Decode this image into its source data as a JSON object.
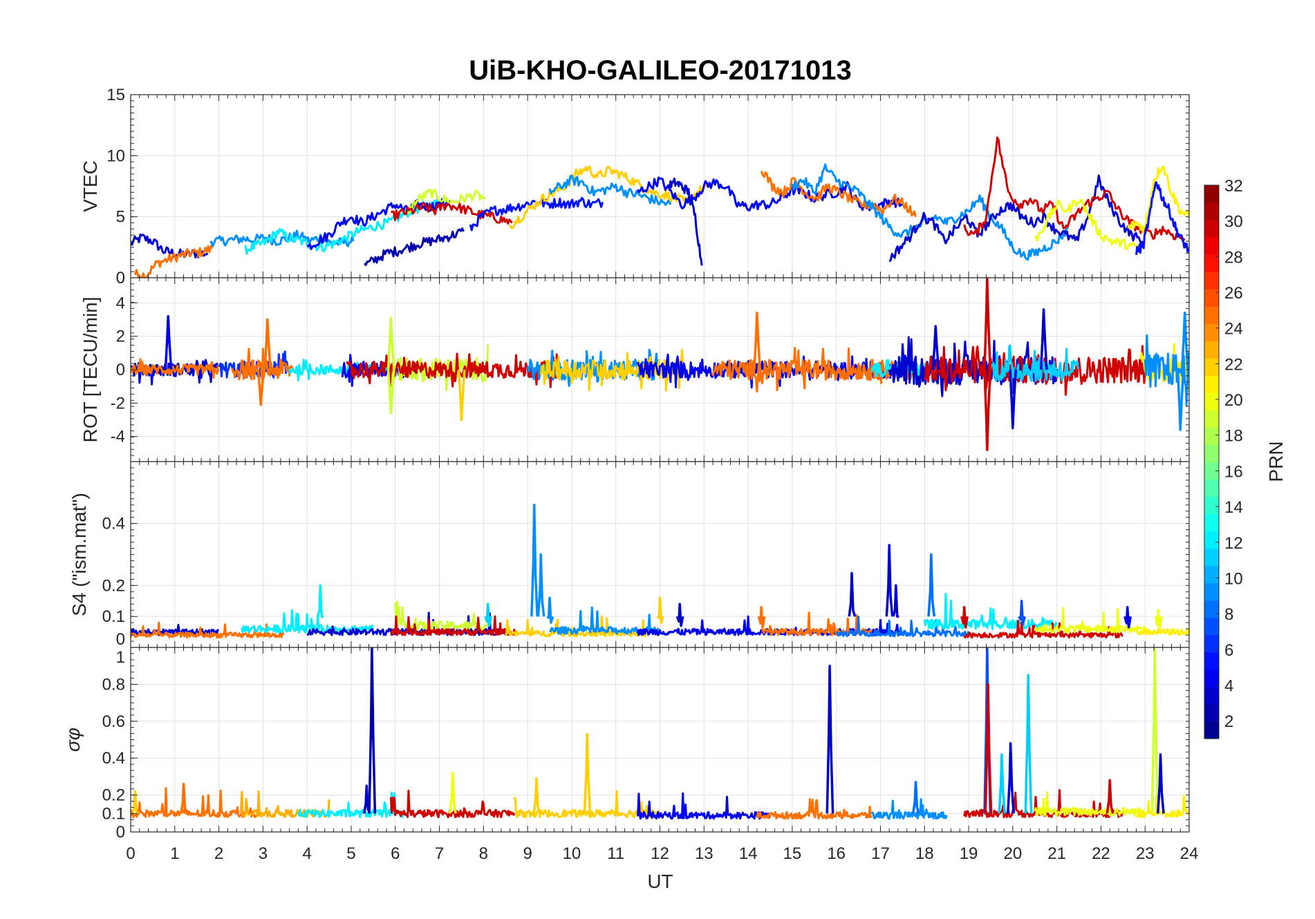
{
  "chart_data": {
    "type": "line",
    "title": "UiB-KHO-GALILEO-20171013",
    "xlabel": "UT",
    "xlim": [
      0,
      24
    ],
    "xticks": [
      "0",
      "1",
      "2",
      "3",
      "4",
      "5",
      "6",
      "7",
      "8",
      "9",
      "10",
      "11",
      "12",
      "13",
      "14",
      "15",
      "16",
      "17",
      "18",
      "19",
      "20",
      "21",
      "22",
      "23",
      "24"
    ],
    "grid": true,
    "colorbar": {
      "label": "PRN",
      "colormap": "jet",
      "range": [
        1,
        32
      ],
      "ticks": [
        "2",
        "4",
        "6",
        "8",
        "10",
        "12",
        "14",
        "16",
        "18",
        "20",
        "22",
        "24",
        "26",
        "28",
        "30",
        "32"
      ],
      "placement": "right"
    },
    "panels": [
      {
        "ylabel": "VTEC",
        "ylim": [
          0,
          15
        ],
        "yticks": [
          "0",
          "5",
          "10",
          "15"
        ],
        "ytick_values": [
          0,
          5,
          10,
          15
        ],
        "series": [
          {
            "prn": 3,
            "t0": 0,
            "dt": 0.25,
            "v": [
              2.8,
              3.3,
              3.0,
              2.2,
              2.0,
              1.9,
              2.0,
              2.0
            ]
          },
          {
            "prn": 25,
            "t0": 0.1,
            "dt": 0.25,
            "v": [
              0.3,
              0.2,
              1.2,
              1.5,
              1.8,
              2.0,
              2.1,
              2.4
            ]
          },
          {
            "prn": 9,
            "t0": 1.8,
            "dt": 0.25,
            "v": [
              3.0,
              3.0,
              3.1,
              3.2,
              3.1,
              3.3,
              3.0,
              3.2,
              3.5,
              3.0,
              3.3,
              2.8,
              2.9,
              3.0
            ]
          },
          {
            "prn": 12,
            "t0": 2.6,
            "dt": 0.25,
            "v": [
              2.3,
              2.6,
              3.0,
              3.8,
              3.2,
              3.0,
              2.7,
              2.5,
              2.8,
              3.2,
              3.7,
              4.0,
              4.3,
              4.5,
              5.0,
              5.5,
              5.8,
              6.0,
              6.3
            ]
          },
          {
            "prn": 4,
            "t0": 4.0,
            "dt": 0.25,
            "v": [
              2.5,
              3.0,
              3.5,
              4.5,
              5.0,
              4.5,
              5.0,
              5.5,
              6.0,
              5.5,
              6.0,
              5.8,
              6.0,
              6.3
            ]
          },
          {
            "prn": 2,
            "t0": 5.3,
            "dt": 0.25,
            "v": [
              1.0,
              1.5,
              2.0,
              2.2,
              2.5,
              2.8,
              3.0,
              3.2,
              3.5,
              3.8
            ]
          },
          {
            "prn": 19,
            "t0": 6.3,
            "dt": 0.25,
            "v": [
              5.5,
              6.5,
              7.0,
              6.5,
              6.2,
              6.5,
              6.8,
              6.5
            ]
          },
          {
            "prn": 30,
            "t0": 5.9,
            "dt": 0.25,
            "v": [
              5.0,
              5.3,
              5.5,
              5.8,
              5.5,
              6.0,
              5.8,
              5.5,
              5.2,
              5.0,
              4.8,
              4.5
            ]
          },
          {
            "prn": 5,
            "t0": 7.7,
            "dt": 0.25,
            "v": [
              4.0,
              5.0,
              5.5,
              5.6,
              5.8,
              6.0,
              6.3,
              6.0,
              6.2,
              6.0,
              6.3,
              6.0,
              6.2
            ]
          },
          {
            "prn": 22,
            "t0": 8.6,
            "dt": 0.25,
            "v": [
              4.3,
              5.0,
              5.8,
              6.5,
              7.0,
              7.5,
              8.5,
              9.0,
              8.3,
              8.8,
              8.5,
              8.0,
              7.5,
              7.0,
              6.8,
              6.5,
              6.2,
              7.0,
              7.5
            ]
          },
          {
            "prn": 9,
            "t0": 9.5,
            "dt": 0.25,
            "v": [
              7.0,
              7.5,
              8.0,
              7.8,
              7.0,
              7.2,
              7.5,
              7.0,
              6.8,
              6.5,
              6.2,
              6.0
            ]
          },
          {
            "prn": 4,
            "t0": 11.5,
            "dt": 0.25,
            "v": [
              7.0,
              7.5,
              8.0,
              7.0,
              6.0,
              6.5,
              7.5,
              7.8,
              7.5,
              6.0,
              5.8,
              6.0,
              6.0,
              6.5,
              7.2,
              7.0,
              6.5,
              6.8,
              7.0,
              7.5,
              6.0,
              5.8,
              6.0,
              6.3,
              6.0
            ]
          },
          {
            "prn": 3,
            "t0": 12.2,
            "dt": 0.15,
            "v": [
              7.5,
              7.8,
              7.5,
              7.0,
              5.0,
              1.0
            ]
          },
          {
            "prn": 25,
            "t0": 14.3,
            "dt": 0.25,
            "v": [
              9.0,
              7.5,
              7.0,
              8.0,
              7.0,
              6.5,
              7.5,
              7.0,
              6.5,
              6.0,
              6.0,
              5.5,
              6.5,
              6.0,
              5.0
            ]
          },
          {
            "prn": 9,
            "t0": 15.0,
            "dt": 0.25,
            "v": [
              7.5,
              8.0,
              7.0,
              9.0,
              8.0,
              7.5,
              7.0,
              6.0,
              5.0,
              4.0,
              3.5,
              4.0,
              4.5,
              5.0,
              4.5,
              5.0,
              5.5,
              6.5,
              5.0,
              4.0,
              2.5,
              1.8,
              2.0,
              2.5,
              3.0,
              4.0
            ]
          },
          {
            "prn": 3,
            "t0": 17.2,
            "dt": 0.25,
            "v": [
              1.5,
              2.5,
              3.5,
              5.0,
              4.5,
              3.0,
              4.0,
              5.0,
              3.5,
              4.5,
              5.5,
              6.0,
              5.0,
              4.5,
              5.0,
              4.0,
              3.5,
              3.0,
              5.0,
              8.0,
              6.0,
              4.5,
              3.5,
              3.0
            ]
          },
          {
            "prn": 30,
            "t0": 18.9,
            "dt": 0.25,
            "v": [
              4.0,
              3.5,
              5.0,
              11.5,
              7.0,
              6.0,
              6.5,
              5.5,
              6.0,
              4.0,
              5.0,
              6.0,
              6.5,
              7.0,
              5.5,
              4.5,
              4.0,
              3.5,
              4.0,
              3.5,
              3.2
            ]
          },
          {
            "prn": 20,
            "t0": 20.5,
            "dt": 0.25,
            "v": [
              3.0,
              4.5,
              6.0,
              5.5,
              6.5,
              5.0,
              3.5,
              3.0,
              2.8,
              2.5,
              2.5
            ]
          },
          {
            "prn": 21,
            "t0": 22.6,
            "dt": 0.2,
            "v": [
              4.0,
              4.5,
              4.0,
              8.0,
              9.3,
              7.0,
              5.5,
              5.0,
              4.5
            ]
          },
          {
            "prn": 5,
            "t0": 22.8,
            "dt": 0.15,
            "v": [
              2.2,
              2.5,
              5.0,
              8.0,
              6.5,
              5.5,
              4.0,
              3.0,
              2.2
            ]
          }
        ]
      },
      {
        "ylabel": "ROT [TECU/min]",
        "ylim": [
          -5.5,
          5.5
        ],
        "yticks": [
          "-4",
          "-2",
          "0",
          "2",
          "4"
        ],
        "ytick_values": [
          -4,
          -2,
          0,
          2,
          4
        ],
        "noise_segments": [
          {
            "prn": 3,
            "t0": 0,
            "t1": 2,
            "amp": 0.4
          },
          {
            "prn": 25,
            "t0": 0,
            "t1": 2,
            "amp": 0.3
          },
          {
            "prn": 6,
            "t0": 2,
            "t1": 3.6,
            "amp": 0.5
          },
          {
            "prn": 25,
            "t0": 2.3,
            "t1": 3.7,
            "amp": 0.6
          },
          {
            "prn": 12,
            "t0": 3.6,
            "t1": 6,
            "amp": 0.3
          },
          {
            "prn": 4,
            "t0": 4.8,
            "t1": 6.5,
            "amp": 0.5
          },
          {
            "prn": 19,
            "t0": 5.8,
            "t1": 8.1,
            "amp": 0.7
          },
          {
            "prn": 30,
            "t0": 4.9,
            "t1": 9.7,
            "amp": 0.5
          },
          {
            "prn": 9,
            "t0": 9,
            "t1": 12,
            "amp": 0.6
          },
          {
            "prn": 22,
            "t0": 9.3,
            "t1": 12.6,
            "amp": 0.6
          },
          {
            "prn": 4,
            "t0": 11.5,
            "t1": 17.7,
            "amp": 0.5
          },
          {
            "prn": 25,
            "t0": 13.2,
            "t1": 17.8,
            "amp": 0.6
          },
          {
            "prn": 12,
            "t0": 16.8,
            "t1": 18.8,
            "amp": 0.4
          },
          {
            "prn": 3,
            "t0": 17.2,
            "t1": 21,
            "amp": 0.9
          },
          {
            "prn": 30,
            "t0": 18,
            "t1": 23,
            "amp": 0.8
          },
          {
            "prn": 11,
            "t0": 19.5,
            "t1": 21.5,
            "amp": 0.7
          },
          {
            "prn": 21,
            "t0": 22.9,
            "t1": 24,
            "amp": 0.8
          },
          {
            "prn": 9,
            "t0": 23,
            "t1": 24,
            "amp": 1.0
          }
        ],
        "spikes": [
          {
            "t": 0.85,
            "v": 3.2,
            "prn": 4
          },
          {
            "t": 2.95,
            "v": -2.1,
            "prn": 25
          },
          {
            "t": 3.1,
            "v": 3.0,
            "prn": 25
          },
          {
            "t": 5.9,
            "v": 3.1,
            "prn": 19
          },
          {
            "t": 5.9,
            "v": -2.6,
            "prn": 19
          },
          {
            "t": 7.5,
            "v": -3.0,
            "prn": 22
          },
          {
            "t": 14.2,
            "v": 3.4,
            "prn": 25
          },
          {
            "t": 18.25,
            "v": 2.6,
            "prn": 3
          },
          {
            "t": 19.42,
            "v": 5.5,
            "prn": 30
          },
          {
            "t": 19.42,
            "v": -4.8,
            "prn": 30
          },
          {
            "t": 20.7,
            "v": 3.6,
            "prn": 3
          },
          {
            "t": 20,
            "v": -3.5,
            "prn": 3
          },
          {
            "t": 23.9,
            "v": 3.4,
            "prn": 9
          },
          {
            "t": 23.8,
            "v": -3.6,
            "prn": 9
          }
        ]
      },
      {
        "ylabel": "S4 (\"ism.mat\")",
        "ylim": [
          0,
          0.6
        ],
        "yticks": [
          "0",
          "0.1",
          "0.2",
          "0.4"
        ],
        "ytick_values": [
          0,
          0.1,
          0.2,
          0.4
        ],
        "noise_segments": [
          {
            "prn": 3,
            "t0": 0,
            "t1": 2,
            "base": 0.05
          },
          {
            "prn": 25,
            "t0": 0,
            "t1": 3.5,
            "base": 0.04
          },
          {
            "prn": 12,
            "t0": 2.5,
            "t1": 5.5,
            "base": 0.06
          },
          {
            "prn": 3,
            "t0": 4,
            "t1": 8.6,
            "base": 0.05
          },
          {
            "prn": 19,
            "t0": 6,
            "t1": 8.1,
            "base": 0.07
          },
          {
            "prn": 30,
            "t0": 5.9,
            "t1": 8.7,
            "base": 0.05
          },
          {
            "prn": 22,
            "t0": 8.5,
            "t1": 12,
            "base": 0.045
          },
          {
            "prn": 9,
            "t0": 9.5,
            "t1": 12,
            "base": 0.055
          },
          {
            "prn": 4,
            "t0": 11.5,
            "t1": 17.5,
            "base": 0.05
          },
          {
            "prn": 25,
            "t0": 14.3,
            "t1": 16.8,
            "base": 0.05
          },
          {
            "prn": 8,
            "t0": 16,
            "t1": 19,
            "base": 0.045
          },
          {
            "prn": 12,
            "t0": 18,
            "t1": 21,
            "base": 0.075
          },
          {
            "prn": 30,
            "t0": 18.9,
            "t1": 22.5,
            "base": 0.04
          },
          {
            "prn": 20,
            "t0": 20.5,
            "t1": 23,
            "base": 0.06
          },
          {
            "prn": 21,
            "t0": 22.8,
            "t1": 24,
            "base": 0.05
          }
        ],
        "spikes": [
          {
            "t": 4.3,
            "v": 0.2,
            "prn": 12
          },
          {
            "t": 8.1,
            "v": 0.14,
            "prn": 11
          },
          {
            "t": 9.15,
            "v": 0.46,
            "prn": 9
          },
          {
            "t": 9.3,
            "v": 0.3,
            "prn": 9
          },
          {
            "t": 9.5,
            "v": 0.16,
            "prn": 9
          },
          {
            "t": 12,
            "v": 0.16,
            "prn": 22
          },
          {
            "t": 12.45,
            "v": 0.14,
            "prn": 3
          },
          {
            "t": 14.3,
            "v": 0.13,
            "prn": 25
          },
          {
            "t": 16.35,
            "v": 0.24,
            "prn": 3
          },
          {
            "t": 17.2,
            "v": 0.33,
            "prn": 3
          },
          {
            "t": 17.35,
            "v": 0.2,
            "prn": 3
          },
          {
            "t": 18.15,
            "v": 0.3,
            "prn": 8
          },
          {
            "t": 18.9,
            "v": 0.13,
            "prn": 30
          },
          {
            "t": 20.2,
            "v": 0.15,
            "prn": 7
          },
          {
            "t": 22.6,
            "v": 0.13,
            "prn": 4
          },
          {
            "t": 23.3,
            "v": 0.12,
            "prn": 20
          }
        ]
      },
      {
        "ylabel": "σφ",
        "ylim": [
          0,
          1
        ],
        "yticks": [
          "0",
          "0.1",
          "0.2",
          "0.4",
          "0.6",
          "0.8",
          "1"
        ],
        "ytick_values": [
          0,
          0.1,
          0.2,
          0.4,
          0.6,
          0.8,
          1
        ],
        "noise_segments": [
          {
            "prn": 25,
            "t0": 0,
            "t1": 3,
            "base": 0.1
          },
          {
            "prn": 23,
            "t0": 2.5,
            "t1": 4.5,
            "base": 0.1
          },
          {
            "prn": 12,
            "t0": 3.8,
            "t1": 6.2,
            "base": 0.1
          },
          {
            "prn": 30,
            "t0": 5.9,
            "t1": 8.7,
            "base": 0.1
          },
          {
            "prn": 22,
            "t0": 8.7,
            "t1": 12,
            "base": 0.1
          },
          {
            "prn": 4,
            "t0": 11.5,
            "t1": 14.5,
            "base": 0.09
          },
          {
            "prn": 25,
            "t0": 14.2,
            "t1": 16.8,
            "base": 0.09
          },
          {
            "prn": 9,
            "t0": 16.8,
            "t1": 18.5,
            "base": 0.09
          },
          {
            "prn": 30,
            "t0": 18.9,
            "t1": 22.5,
            "base": 0.1
          },
          {
            "prn": 20,
            "t0": 20.5,
            "t1": 23,
            "base": 0.11
          },
          {
            "prn": 21,
            "t0": 22.8,
            "t1": 24,
            "base": 0.1
          }
        ],
        "spikes": [
          {
            "t": 0.1,
            "v": 0.22,
            "prn": 22
          },
          {
            "t": 1.2,
            "v": 0.26,
            "prn": 25
          },
          {
            "t": 5.35,
            "v": 0.25,
            "prn": 3
          },
          {
            "t": 5.47,
            "v": 1.0,
            "prn": 2
          },
          {
            "t": 7.3,
            "v": 0.32,
            "prn": 20
          },
          {
            "t": 9.2,
            "v": 0.29,
            "prn": 22
          },
          {
            "t": 10.35,
            "v": 0.53,
            "prn": 22
          },
          {
            "t": 15.85,
            "v": 0.9,
            "prn": 3
          },
          {
            "t": 17.8,
            "v": 0.27,
            "prn": 8
          },
          {
            "t": 19.42,
            "v": 1.0,
            "prn": 7
          },
          {
            "t": 19.44,
            "v": 0.8,
            "prn": 30
          },
          {
            "t": 19.75,
            "v": 0.42,
            "prn": 11
          },
          {
            "t": 19.95,
            "v": 0.48,
            "prn": 3
          },
          {
            "t": 20.35,
            "v": 0.85,
            "prn": 11
          },
          {
            "t": 22.2,
            "v": 0.28,
            "prn": 30
          },
          {
            "t": 23.22,
            "v": 1.0,
            "prn": 19
          },
          {
            "t": 23.35,
            "v": 0.42,
            "prn": 3
          }
        ]
      }
    ]
  }
}
